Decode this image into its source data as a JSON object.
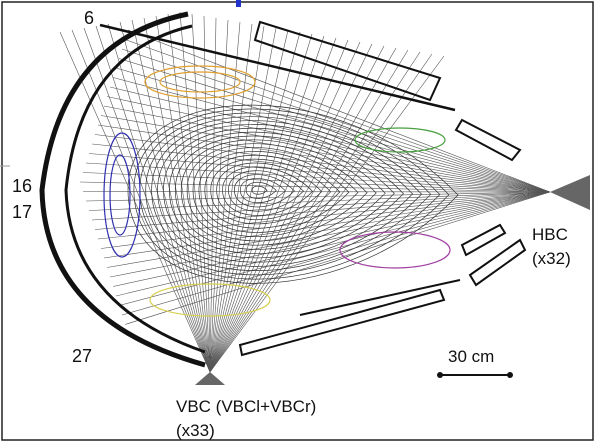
{
  "channel_labels": [
    "6",
    "16",
    "17",
    "27"
  ],
  "cameras": [
    {
      "name": "HBC",
      "count": "(x32)"
    },
    {
      "name": "VBC (VBCl+VBCr)",
      "count": "(x33)"
    }
  ],
  "scale_bar": "30 cm"
}
